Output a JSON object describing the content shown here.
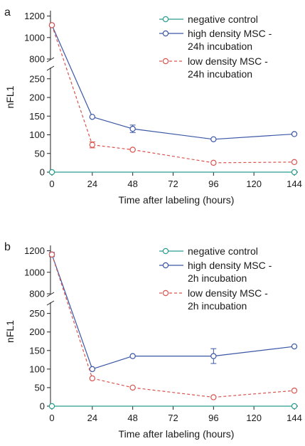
{
  "chart_data": [
    {
      "type": "line",
      "panel_label": "a",
      "xlabel": "Time after labeling (hours)",
      "ylabel": "nFL1",
      "x_ticks": [
        0,
        24,
        48,
        72,
        96,
        120,
        144
      ],
      "y_upper_ticks": [
        800,
        1000,
        1200
      ],
      "y_lower_ticks": [
        0,
        50,
        100,
        150,
        200,
        250
      ],
      "y_upper_range": [
        800,
        1250
      ],
      "y_lower_range": [
        0,
        280
      ],
      "broken_y_axis": true,
      "legend_position": "top-right",
      "series": [
        {
          "name": "negative control",
          "color": "#2a9d8f",
          "style": "solid",
          "points": [
            {
              "x": 0,
              "y": 0
            },
            {
              "x": 144,
              "y": 0
            }
          ]
        },
        {
          "name": "high density MSC - 24h incubation",
          "legend_lines": [
            "high density MSC -",
            "24h incubation"
          ],
          "color": "#3a56a5",
          "style": "solid",
          "points": [
            {
              "x": 0,
              "y": 1115
            },
            {
              "x": 24,
              "y": 148
            },
            {
              "x": 48,
              "y": 116,
              "err": 10
            },
            {
              "x": 96,
              "y": 88
            },
            {
              "x": 144,
              "y": 102
            }
          ]
        },
        {
          "name": "low density MSC - 24h incubation",
          "legend_lines": [
            "low density MSC -",
            "24h incubation"
          ],
          "color": "#d9534f",
          "style": "dashed",
          "points": [
            {
              "x": 0,
              "y": 1115
            },
            {
              "x": 24,
              "y": 73,
              "err": 8
            },
            {
              "x": 48,
              "y": 60
            },
            {
              "x": 96,
              "y": 25
            },
            {
              "x": 144,
              "y": 27
            }
          ]
        }
      ]
    },
    {
      "type": "line",
      "panel_label": "b",
      "xlabel": "Time after labeling (hours)",
      "ylabel": "nFL1",
      "x_ticks": [
        0,
        24,
        48,
        72,
        96,
        120,
        144
      ],
      "y_upper_ticks": [
        800,
        1000,
        1200
      ],
      "y_lower_ticks": [
        0,
        50,
        100,
        150,
        200,
        250
      ],
      "y_upper_range": [
        800,
        1250
      ],
      "y_lower_range": [
        0,
        280
      ],
      "broken_y_axis": true,
      "legend_position": "top-right",
      "series": [
        {
          "name": "negative control",
          "color": "#2a9d8f",
          "style": "solid",
          "points": [
            {
              "x": 0,
              "y": 0
            },
            {
              "x": 144,
              "y": 0
            }
          ]
        },
        {
          "name": "high density MSC - 2h incubation",
          "legend_lines": [
            "high density MSC -",
            "2h incubation"
          ],
          "color": "#3a56a5",
          "style": "solid",
          "points": [
            {
              "x": 0,
              "y": 1165,
              "err": 20
            },
            {
              "x": 24,
              "y": 100
            },
            {
              "x": 48,
              "y": 135
            },
            {
              "x": 96,
              "y": 135,
              "err": 20
            },
            {
              "x": 144,
              "y": 161
            }
          ]
        },
        {
          "name": "low density MSC - 2h incubation",
          "legend_lines": [
            "low density MSC -",
            "2h incubation"
          ],
          "color": "#d9534f",
          "style": "dashed",
          "points": [
            {
              "x": 0,
              "y": 1165
            },
            {
              "x": 24,
              "y": 75
            },
            {
              "x": 48,
              "y": 50
            },
            {
              "x": 96,
              "y": 24
            },
            {
              "x": 144,
              "y": 42
            }
          ]
        }
      ]
    }
  ]
}
